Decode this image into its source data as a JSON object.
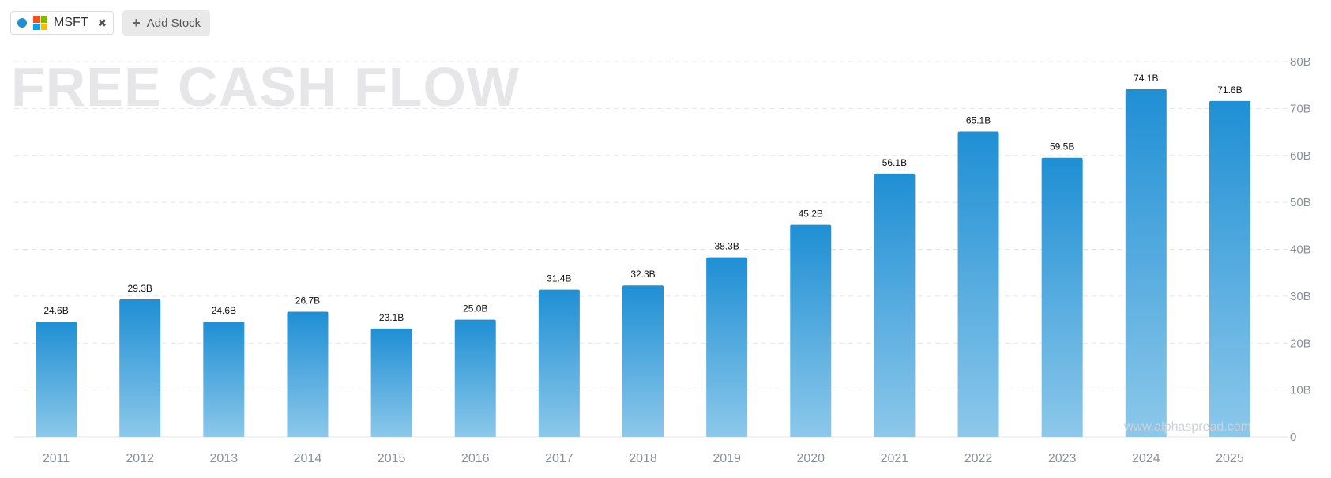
{
  "toolbar": {
    "stock_ticker": "MSFT",
    "close_glyph": "✖",
    "add_stock_label": "Add Stock",
    "add_icon": "plus-icon",
    "series_color": "#1f8fd4"
  },
  "watermark": "www.alphaspread.com",
  "chart_data": {
    "type": "bar",
    "title": "FREE CASH FLOW",
    "categories": [
      "2011",
      "2012",
      "2013",
      "2014",
      "2015",
      "2016",
      "2017",
      "2018",
      "2019",
      "2020",
      "2021",
      "2022",
      "2023",
      "2024",
      "2025"
    ],
    "values": [
      24.6,
      29.3,
      24.6,
      26.7,
      23.1,
      25.0,
      31.4,
      32.3,
      38.3,
      45.2,
      56.1,
      65.1,
      59.5,
      74.1,
      71.6
    ],
    "value_labels": [
      "24.6B",
      "29.3B",
      "24.6B",
      "26.7B",
      "23.1B",
      "25.0B",
      "31.4B",
      "32.3B",
      "38.3B",
      "45.2B",
      "56.1B",
      "65.1B",
      "59.5B",
      "74.1B",
      "71.6B"
    ],
    "y_ticks": [
      0,
      10,
      20,
      30,
      40,
      50,
      60,
      70,
      80
    ],
    "y_tick_labels": [
      "0",
      "10B",
      "20B",
      "30B",
      "40B",
      "50B",
      "60B",
      "70B",
      "80B"
    ],
    "ylim": [
      0,
      80
    ],
    "y_axis_side": "right",
    "grid": true,
    "bar_color_top": "#1f8fd4",
    "bar_color_bottom": "#8cc8ea",
    "grid_color": "#e3e5e8"
  }
}
